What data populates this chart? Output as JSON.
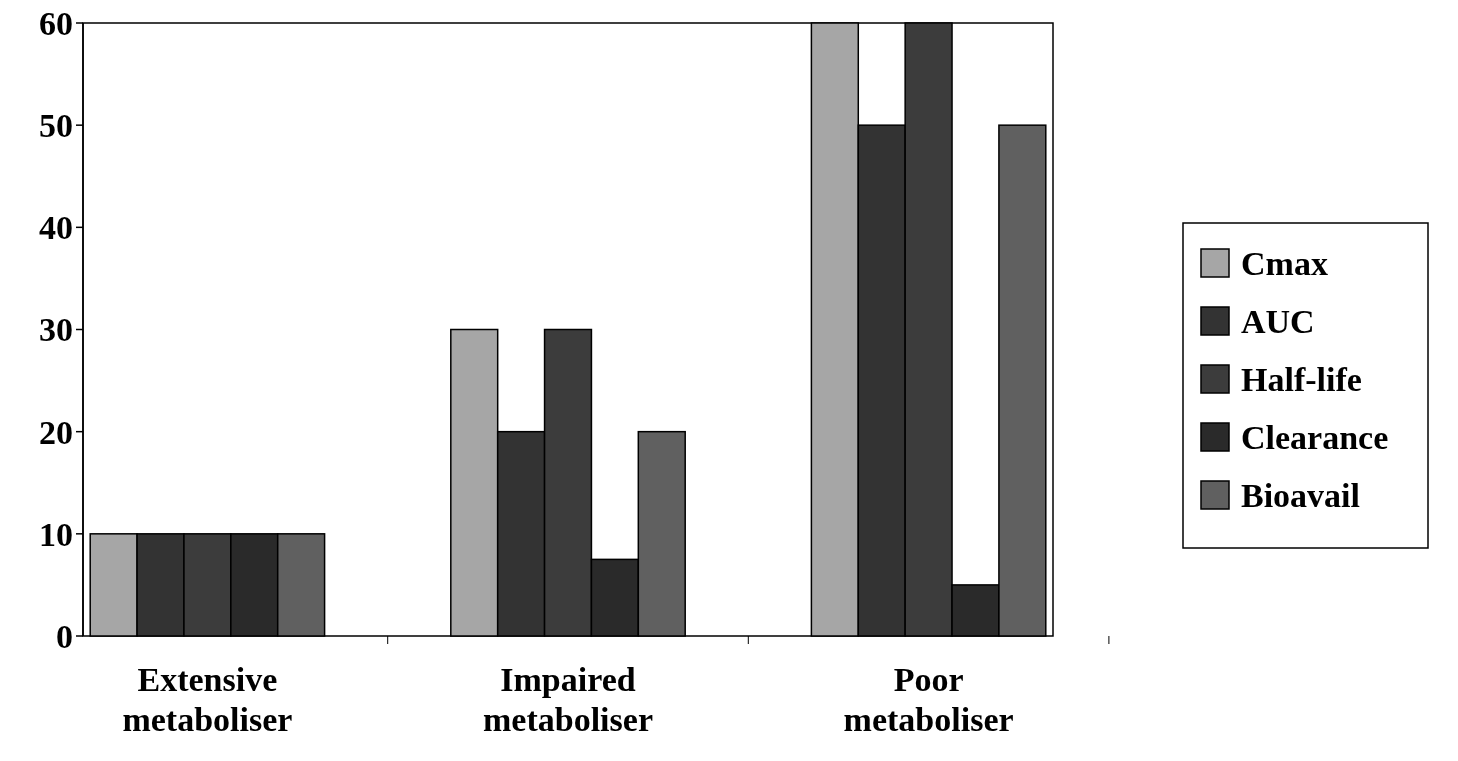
{
  "chart_data": {
    "type": "bar",
    "categories": [
      "Extensive metaboliser",
      "Impaired metaboliser",
      "Poor metaboliser"
    ],
    "series": [
      {
        "name": "Cmax",
        "color": "#a6a6a6",
        "values": [
          10,
          30,
          60
        ]
      },
      {
        "name": "AUC",
        "color": "#333333",
        "values": [
          10,
          20,
          50
        ]
      },
      {
        "name": "Half-life",
        "color": "#3c3c3c",
        "values": [
          10,
          30,
          60
        ]
      },
      {
        "name": "Clearance",
        "color": "#2a2a2a",
        "values": [
          10,
          7.5,
          5
        ]
      },
      {
        "name": "Bioavail",
        "color": "#606060",
        "values": [
          10,
          20,
          50
        ]
      }
    ],
    "ylim": [
      0,
      60
    ],
    "yticks": [
      0,
      10,
      20,
      30,
      40,
      50,
      60
    ],
    "legend": "right",
    "grid": false
  }
}
